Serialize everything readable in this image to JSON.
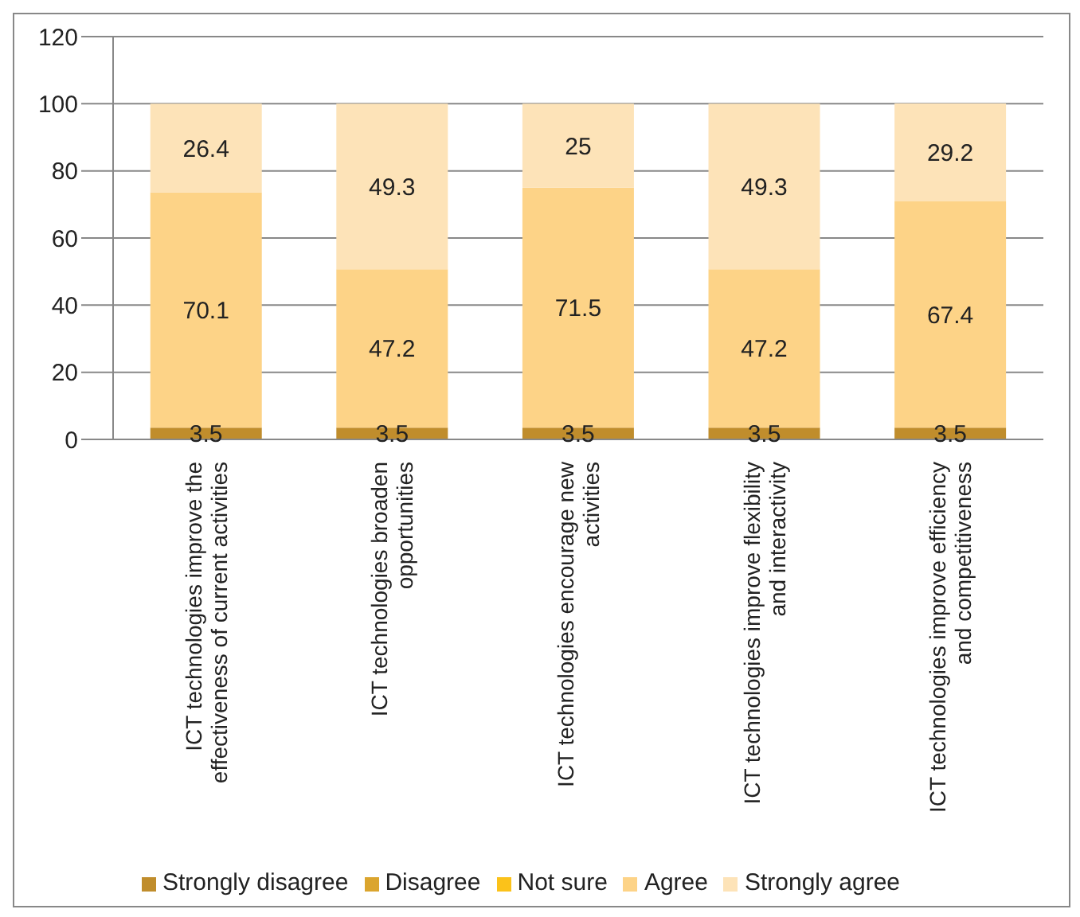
{
  "chart_data": {
    "type": "bar",
    "stacked": true,
    "categories": [
      "ICT technologies improve the effectiveness of current activities",
      "ICT technologies broaden opportunities",
      "ICT technologies encourage new activities",
      "ICT technologies improve flexibility and interactivity",
      "ICT technologies improve efficiency and competitiveness"
    ],
    "series": [
      {
        "name": "Strongly disagree",
        "color": "#c08d2c",
        "values": [
          3.5,
          3.5,
          3.5,
          3.5,
          3.5
        ]
      },
      {
        "name": "Disagree",
        "color": "#dba52e",
        "values": [
          null,
          null,
          null,
          null,
          null
        ]
      },
      {
        "name": "Not sure",
        "color": "#fbc21a",
        "values": [
          null,
          null,
          null,
          null,
          null
        ]
      },
      {
        "name": "Agree",
        "color": "#fdd387",
        "values": [
          70.1,
          47.2,
          71.5,
          47.2,
          67.4
        ]
      },
      {
        "name": "Strongly agree",
        "color": "#fde3b8",
        "values": [
          26.4,
          49.3,
          25,
          49.3,
          29.2
        ]
      }
    ],
    "ylim": [
      0,
      120
    ],
    "yticks": [
      0,
      20,
      40,
      60,
      80,
      100,
      120
    ],
    "grid": "y",
    "legend": "bottom",
    "data_labels": true
  }
}
